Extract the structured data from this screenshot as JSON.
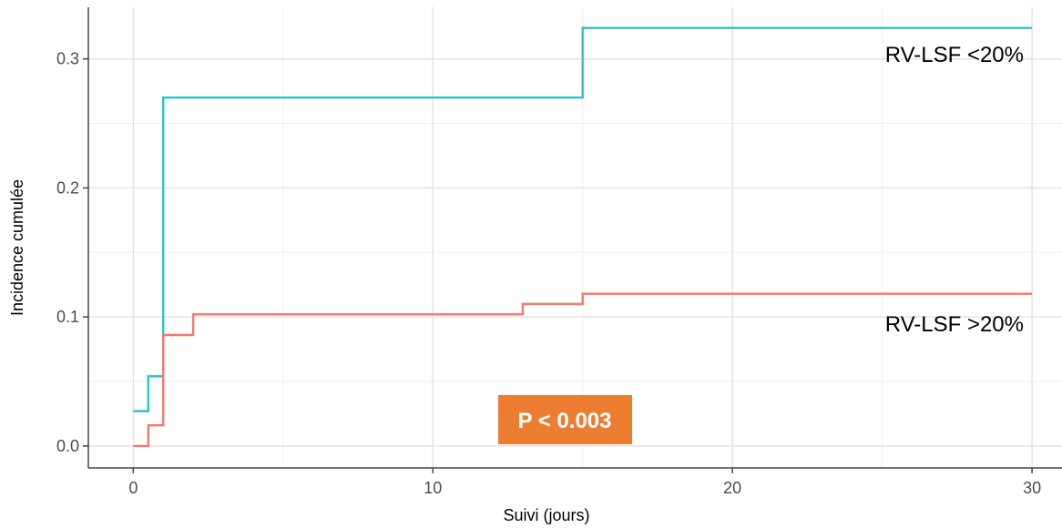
{
  "chart_data": {
    "type": "line",
    "subtype": "step",
    "xlabel": "Suivi (jours)",
    "ylabel": "Incidence cumulée",
    "xlim": [
      -1.5,
      31
    ],
    "ylim": [
      -0.017,
      0.34
    ],
    "x_ticks": [
      0,
      10,
      20,
      30
    ],
    "x_tick_labels": [
      "0",
      "10",
      "20",
      "30"
    ],
    "y_ticks": [
      0.0,
      0.1,
      0.2,
      0.3
    ],
    "y_tick_labels": [
      "0.0",
      "0.1",
      "0.2",
      "0.3"
    ],
    "grid": true,
    "series": [
      {
        "label": "RV-LSF <20%",
        "color": "#2ec4c4",
        "points": [
          [
            0,
            0.027
          ],
          [
            0.5,
            0.054
          ],
          [
            1,
            0.27
          ],
          [
            15,
            0.324
          ],
          [
            30,
            0.324
          ]
        ]
      },
      {
        "label": "RV-LSF >20%",
        "color": "#f8766d",
        "points": [
          [
            0,
            0.0
          ],
          [
            0.5,
            0.016
          ],
          [
            1,
            0.086
          ],
          [
            2,
            0.102
          ],
          [
            13,
            0.11
          ],
          [
            15,
            0.118
          ],
          [
            30,
            0.118
          ]
        ]
      }
    ],
    "annotation": {
      "text": "P < 0.003",
      "background": "#ed7d31",
      "color": "#ffffff"
    }
  }
}
